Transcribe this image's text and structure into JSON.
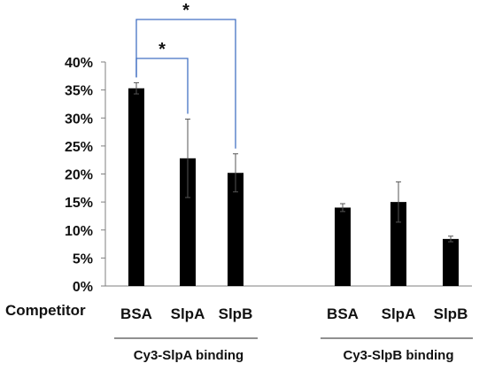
{
  "chart_data": {
    "type": "bar",
    "ylim": [
      0,
      40
    ],
    "yticks": [
      "0%",
      "5%",
      "10%",
      "15%",
      "20%",
      "25%",
      "30%",
      "35%",
      "40%"
    ],
    "row_label": "Competitor",
    "groups": [
      {
        "name": "Cy3-SlpA binding",
        "categories": [
          "BSA",
          "SlpA",
          "SlpB"
        ],
        "values": [
          35.3,
          22.8,
          20.2
        ],
        "errors": [
          1.0,
          7.0,
          3.4
        ]
      },
      {
        "name": "Cy3-SlpB binding",
        "categories": [
          "BSA",
          "SlpA",
          "SlpB"
        ],
        "values": [
          14.0,
          15.0,
          8.4
        ],
        "errors": [
          0.7,
          3.6,
          0.5
        ]
      }
    ],
    "significance": [
      {
        "group": 0,
        "from": 0,
        "to": 1,
        "label": "*"
      },
      {
        "group": 0,
        "from": 0,
        "to": 2,
        "label": "*"
      }
    ],
    "bar_color": "#000000",
    "bracket_color": "#4472c4",
    "grid": false
  }
}
